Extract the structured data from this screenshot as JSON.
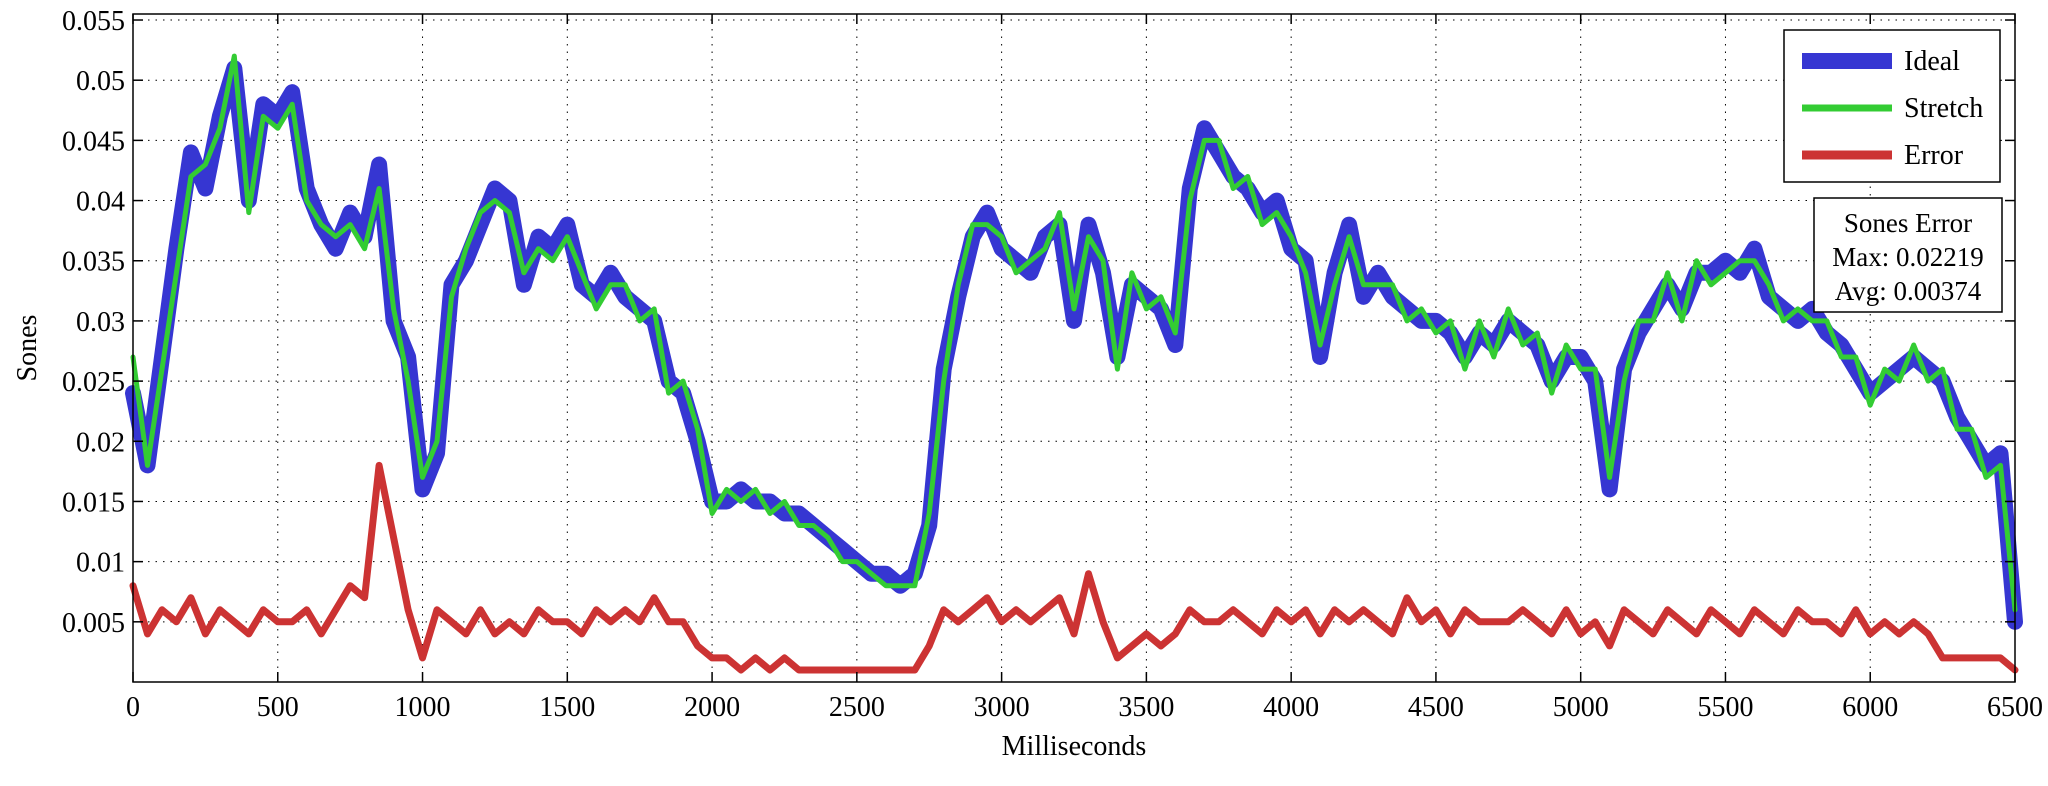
{
  "chart_data": {
    "type": "line",
    "title": "",
    "xlabel": "Milliseconds",
    "ylabel": "Sones",
    "xlim": [
      0,
      6500
    ],
    "ylim": [
      0,
      0.0555
    ],
    "grid": true,
    "legend_position": "top-right",
    "x_ticks": [
      0,
      500,
      1000,
      1500,
      2000,
      2500,
      3000,
      3500,
      4000,
      4500,
      5000,
      5500,
      6000,
      6500
    ],
    "x_tick_labels": [
      "0",
      "500",
      "1000",
      "1500",
      "2000",
      "2500",
      "3000",
      "3500",
      "4000",
      "4500",
      "5000",
      "5500",
      "6000",
      "6500"
    ],
    "y_ticks": [
      0.005,
      0.01,
      0.015,
      0.02,
      0.025,
      0.03,
      0.035,
      0.04,
      0.045,
      0.05,
      0.055
    ],
    "y_tick_labels": [
      "0.005",
      "0.01",
      "0.015",
      "0.02",
      "0.025",
      "0.03",
      "0.035",
      "0.04",
      "0.045",
      "0.05",
      "0.055"
    ],
    "x": [
      0,
      50,
      100,
      150,
      200,
      250,
      300,
      350,
      400,
      450,
      500,
      550,
      600,
      650,
      700,
      750,
      800,
      850,
      900,
      950,
      1000,
      1050,
      1100,
      1150,
      1200,
      1250,
      1300,
      1350,
      1400,
      1450,
      1500,
      1550,
      1600,
      1650,
      1700,
      1750,
      1800,
      1850,
      1900,
      1950,
      2000,
      2050,
      2100,
      2150,
      2200,
      2250,
      2300,
      2350,
      2400,
      2450,
      2500,
      2550,
      2600,
      2650,
      2700,
      2750,
      2800,
      2850,
      2900,
      2950,
      3000,
      3050,
      3100,
      3150,
      3200,
      3250,
      3300,
      3350,
      3400,
      3450,
      3500,
      3550,
      3600,
      3650,
      3700,
      3750,
      3800,
      3850,
      3900,
      3950,
      4000,
      4050,
      4100,
      4150,
      4200,
      4250,
      4300,
      4350,
      4400,
      4450,
      4500,
      4550,
      4600,
      4650,
      4700,
      4750,
      4800,
      4850,
      4900,
      4950,
      5000,
      5050,
      5100,
      5150,
      5200,
      5250,
      5300,
      5350,
      5400,
      5450,
      5500,
      5550,
      5600,
      5650,
      5700,
      5750,
      5800,
      5850,
      5900,
      5950,
      6000,
      6050,
      6100,
      6150,
      6200,
      6250,
      6300,
      6350,
      6400,
      6450,
      6500
    ],
    "series": [
      {
        "name": "Ideal",
        "color": "#3636d2",
        "values": [
          0.024,
          0.018,
          0.027,
          0.036,
          0.044,
          0.041,
          0.047,
          0.051,
          0.04,
          0.048,
          0.047,
          0.049,
          0.041,
          0.038,
          0.036,
          0.039,
          0.037,
          0.043,
          0.03,
          0.027,
          0.016,
          0.019,
          0.033,
          0.035,
          0.038,
          0.041,
          0.04,
          0.033,
          0.037,
          0.036,
          0.038,
          0.033,
          0.032,
          0.034,
          0.032,
          0.031,
          0.03,
          0.025,
          0.024,
          0.02,
          0.015,
          0.015,
          0.016,
          0.015,
          0.015,
          0.014,
          0.014,
          0.013,
          0.012,
          0.011,
          0.01,
          0.009,
          0.009,
          0.008,
          0.009,
          0.013,
          0.026,
          0.032,
          0.037,
          0.039,
          0.036,
          0.035,
          0.034,
          0.037,
          0.038,
          0.03,
          0.038,
          0.034,
          0.027,
          0.033,
          0.032,
          0.031,
          0.028,
          0.041,
          0.046,
          0.044,
          0.042,
          0.041,
          0.039,
          0.04,
          0.036,
          0.035,
          0.027,
          0.034,
          0.038,
          0.032,
          0.034,
          0.032,
          0.031,
          0.03,
          0.03,
          0.029,
          0.027,
          0.029,
          0.028,
          0.03,
          0.029,
          0.028,
          0.025,
          0.027,
          0.027,
          0.025,
          0.016,
          0.026,
          0.029,
          0.031,
          0.033,
          0.031,
          0.034,
          0.034,
          0.035,
          0.034,
          0.036,
          0.032,
          0.031,
          0.03,
          0.031,
          0.029,
          0.028,
          0.026,
          0.024,
          0.025,
          0.026,
          0.027,
          0.026,
          0.025,
          0.022,
          0.02,
          0.018,
          0.019,
          0.005
        ]
      },
      {
        "name": "Stretch",
        "color": "#33cc33",
        "values": [
          0.027,
          0.018,
          0.026,
          0.034,
          0.042,
          0.043,
          0.046,
          0.052,
          0.039,
          0.047,
          0.046,
          0.048,
          0.04,
          0.038,
          0.037,
          0.038,
          0.036,
          0.041,
          0.031,
          0.025,
          0.017,
          0.02,
          0.032,
          0.036,
          0.039,
          0.04,
          0.039,
          0.034,
          0.036,
          0.035,
          0.037,
          0.034,
          0.031,
          0.033,
          0.033,
          0.03,
          0.031,
          0.024,
          0.025,
          0.021,
          0.014,
          0.016,
          0.015,
          0.016,
          0.014,
          0.015,
          0.013,
          0.013,
          0.012,
          0.01,
          0.01,
          0.009,
          0.008,
          0.008,
          0.008,
          0.014,
          0.025,
          0.033,
          0.038,
          0.038,
          0.037,
          0.034,
          0.035,
          0.036,
          0.039,
          0.031,
          0.037,
          0.035,
          0.026,
          0.034,
          0.031,
          0.032,
          0.029,
          0.04,
          0.045,
          0.045,
          0.041,
          0.042,
          0.038,
          0.039,
          0.037,
          0.034,
          0.028,
          0.033,
          0.037,
          0.033,
          0.033,
          0.033,
          0.03,
          0.031,
          0.029,
          0.03,
          0.026,
          0.03,
          0.027,
          0.031,
          0.028,
          0.029,
          0.024,
          0.028,
          0.026,
          0.026,
          0.017,
          0.025,
          0.03,
          0.03,
          0.034,
          0.03,
          0.035,
          0.033,
          0.034,
          0.035,
          0.035,
          0.033,
          0.03,
          0.031,
          0.03,
          0.03,
          0.027,
          0.027,
          0.023,
          0.026,
          0.025,
          0.028,
          0.025,
          0.026,
          0.021,
          0.021,
          0.017,
          0.018,
          0.006
        ]
      },
      {
        "name": "Error",
        "color": "#cc3333",
        "values": [
          0.008,
          0.004,
          0.006,
          0.005,
          0.007,
          0.004,
          0.006,
          0.005,
          0.004,
          0.006,
          0.005,
          0.005,
          0.006,
          0.004,
          0.006,
          0.008,
          0.007,
          0.018,
          0.012,
          0.006,
          0.002,
          0.006,
          0.005,
          0.004,
          0.006,
          0.004,
          0.005,
          0.004,
          0.006,
          0.005,
          0.005,
          0.004,
          0.006,
          0.005,
          0.006,
          0.005,
          0.007,
          0.005,
          0.005,
          0.003,
          0.002,
          0.002,
          0.001,
          0.002,
          0.001,
          0.002,
          0.001,
          0.001,
          0.001,
          0.001,
          0.001,
          0.001,
          0.001,
          0.001,
          0.001,
          0.003,
          0.006,
          0.005,
          0.006,
          0.007,
          0.005,
          0.006,
          0.005,
          0.006,
          0.007,
          0.004,
          0.009,
          0.005,
          0.002,
          0.003,
          0.004,
          0.003,
          0.004,
          0.006,
          0.005,
          0.005,
          0.006,
          0.005,
          0.004,
          0.006,
          0.005,
          0.006,
          0.004,
          0.006,
          0.005,
          0.006,
          0.005,
          0.004,
          0.007,
          0.005,
          0.006,
          0.004,
          0.006,
          0.005,
          0.005,
          0.005,
          0.006,
          0.005,
          0.004,
          0.006,
          0.004,
          0.005,
          0.003,
          0.006,
          0.005,
          0.004,
          0.006,
          0.005,
          0.004,
          0.006,
          0.005,
          0.004,
          0.006,
          0.005,
          0.004,
          0.006,
          0.005,
          0.005,
          0.004,
          0.006,
          0.004,
          0.005,
          0.004,
          0.005,
          0.004,
          0.002,
          0.002,
          0.002,
          0.002,
          0.002,
          0.001
        ]
      }
    ],
    "legend": [
      "Ideal",
      "Stretch",
      "Error"
    ],
    "annotation": {
      "title": "Sones Error",
      "max_line": "Max: 0.02219",
      "avg_line": "Avg: 0.00374"
    }
  }
}
